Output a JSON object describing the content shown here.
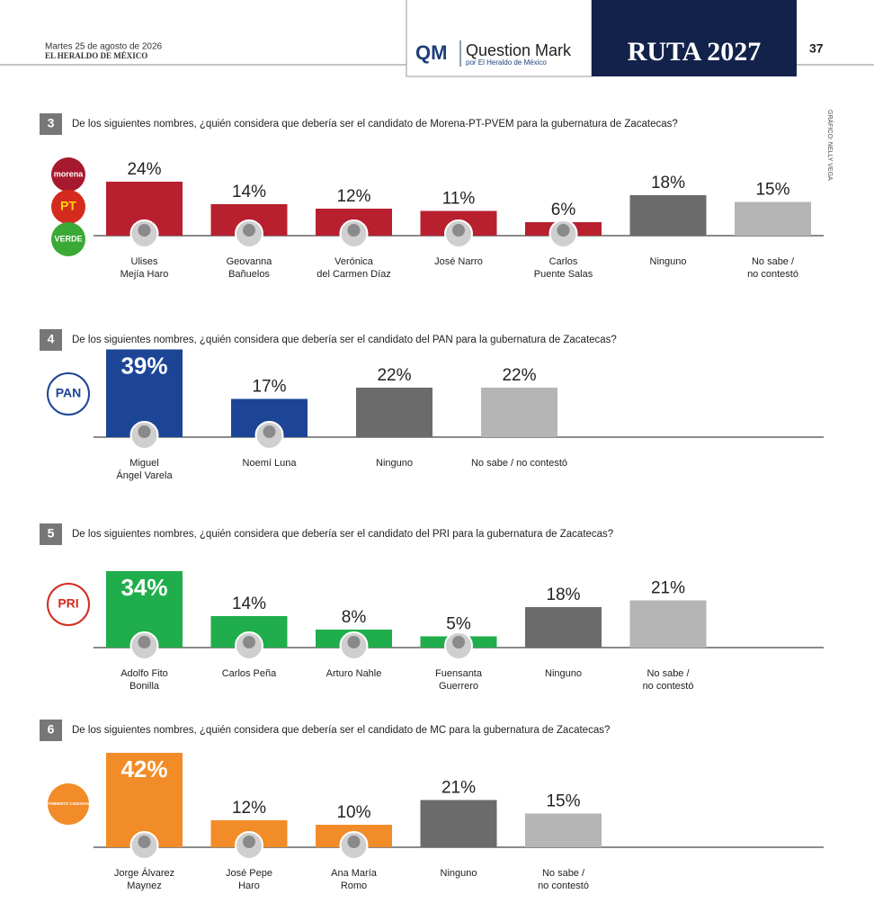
{
  "header": {
    "date": "Martes 25 de agosto de 2026",
    "paper": "EL HERALDO DE MÉXICO",
    "qm_logo": "QM",
    "qm_name": "Question Mark",
    "qm_sub": "por El Heraldo de México",
    "section": "RUTA 2027",
    "page": "37",
    "credit": "GRÁFICO: NELLY VEGA"
  },
  "chart_data": [
    {
      "type": "bar",
      "number": 3,
      "title": "De los siguientes nombres, ¿quién considera que debería ser el candidato de Morena-PT-PVEM para la gubernatura de Zacatecas?",
      "logos": [
        "morena",
        "PT",
        "VERDE"
      ],
      "categories": [
        "Ulises\nMejía Haro",
        "Geovanna\nBañuelos",
        "Verónica\ndel Carmen Díaz",
        "José Narro",
        "Carlos\nPuente Salas",
        "Ninguno",
        "No sabe /\nno contestó"
      ],
      "values": [
        24,
        14,
        12,
        11,
        6,
        18,
        15
      ],
      "value_labels": [
        "24%",
        "14%",
        "12%",
        "11%",
        "6%",
        "18%",
        "15%"
      ],
      "colors": [
        "#b8202f",
        "#b8202f",
        "#b8202f",
        "#b8202f",
        "#b8202f",
        "#6b6b6b",
        "#b5b5b5"
      ]
    },
    {
      "type": "bar",
      "number": 4,
      "title": "De los siguientes nombres, ¿quién considera que debería ser el candidato del PAN para la gubernatura de Zacatecas?",
      "logos": [
        "PAN"
      ],
      "categories": [
        "Miguel\nÁngel Varela",
        "Noemí Luna",
        "Ninguno",
        "No sabe / no contestó"
      ],
      "values": [
        39,
        17,
        22,
        22
      ],
      "value_labels": [
        "39%",
        "17%",
        "22%",
        "22%"
      ],
      "colors": [
        "#1d4596",
        "#1d4596",
        "#6b6b6b",
        "#b5b5b5"
      ]
    },
    {
      "type": "bar",
      "number": 5,
      "title": "De los siguientes nombres, ¿quién considera que debería ser el candidato del PRI para la gubernatura de Zacatecas?",
      "logos": [
        "PRI"
      ],
      "categories": [
        "Adolfo Fito\nBonilla",
        "Carlos Peña",
        "Arturo Nahle",
        "Fuensanta\nGuerrero",
        "Ninguno",
        "No sabe /\nno contestó"
      ],
      "values": [
        34,
        14,
        8,
        5,
        18,
        21
      ],
      "value_labels": [
        "34%",
        "14%",
        "8%",
        "5%",
        "18%",
        "21%"
      ],
      "colors": [
        "#1fae4b",
        "#1fae4b",
        "#1fae4b",
        "#1fae4b",
        "#6b6b6b",
        "#b5b5b5"
      ]
    },
    {
      "type": "bar",
      "number": 6,
      "title": "De los siguientes nombres, ¿quién considera que debería ser el candidato de MC para la gubernatura de Zacatecas?",
      "logos": [
        "MOVIMIENTO CIUDADANO"
      ],
      "categories": [
        "Jorge Álvarez\nMaynez",
        "José Pepe\nHaro",
        "Ana María\nRomo",
        "Ninguno",
        "No sabe /\nno contestó"
      ],
      "values": [
        42,
        12,
        10,
        21,
        15
      ],
      "value_labels": [
        "42%",
        "12%",
        "10%",
        "21%",
        "15%"
      ],
      "colors": [
        "#f28c28",
        "#f28c28",
        "#f28c28",
        "#6b6b6b",
        "#b5b5b5"
      ]
    }
  ]
}
